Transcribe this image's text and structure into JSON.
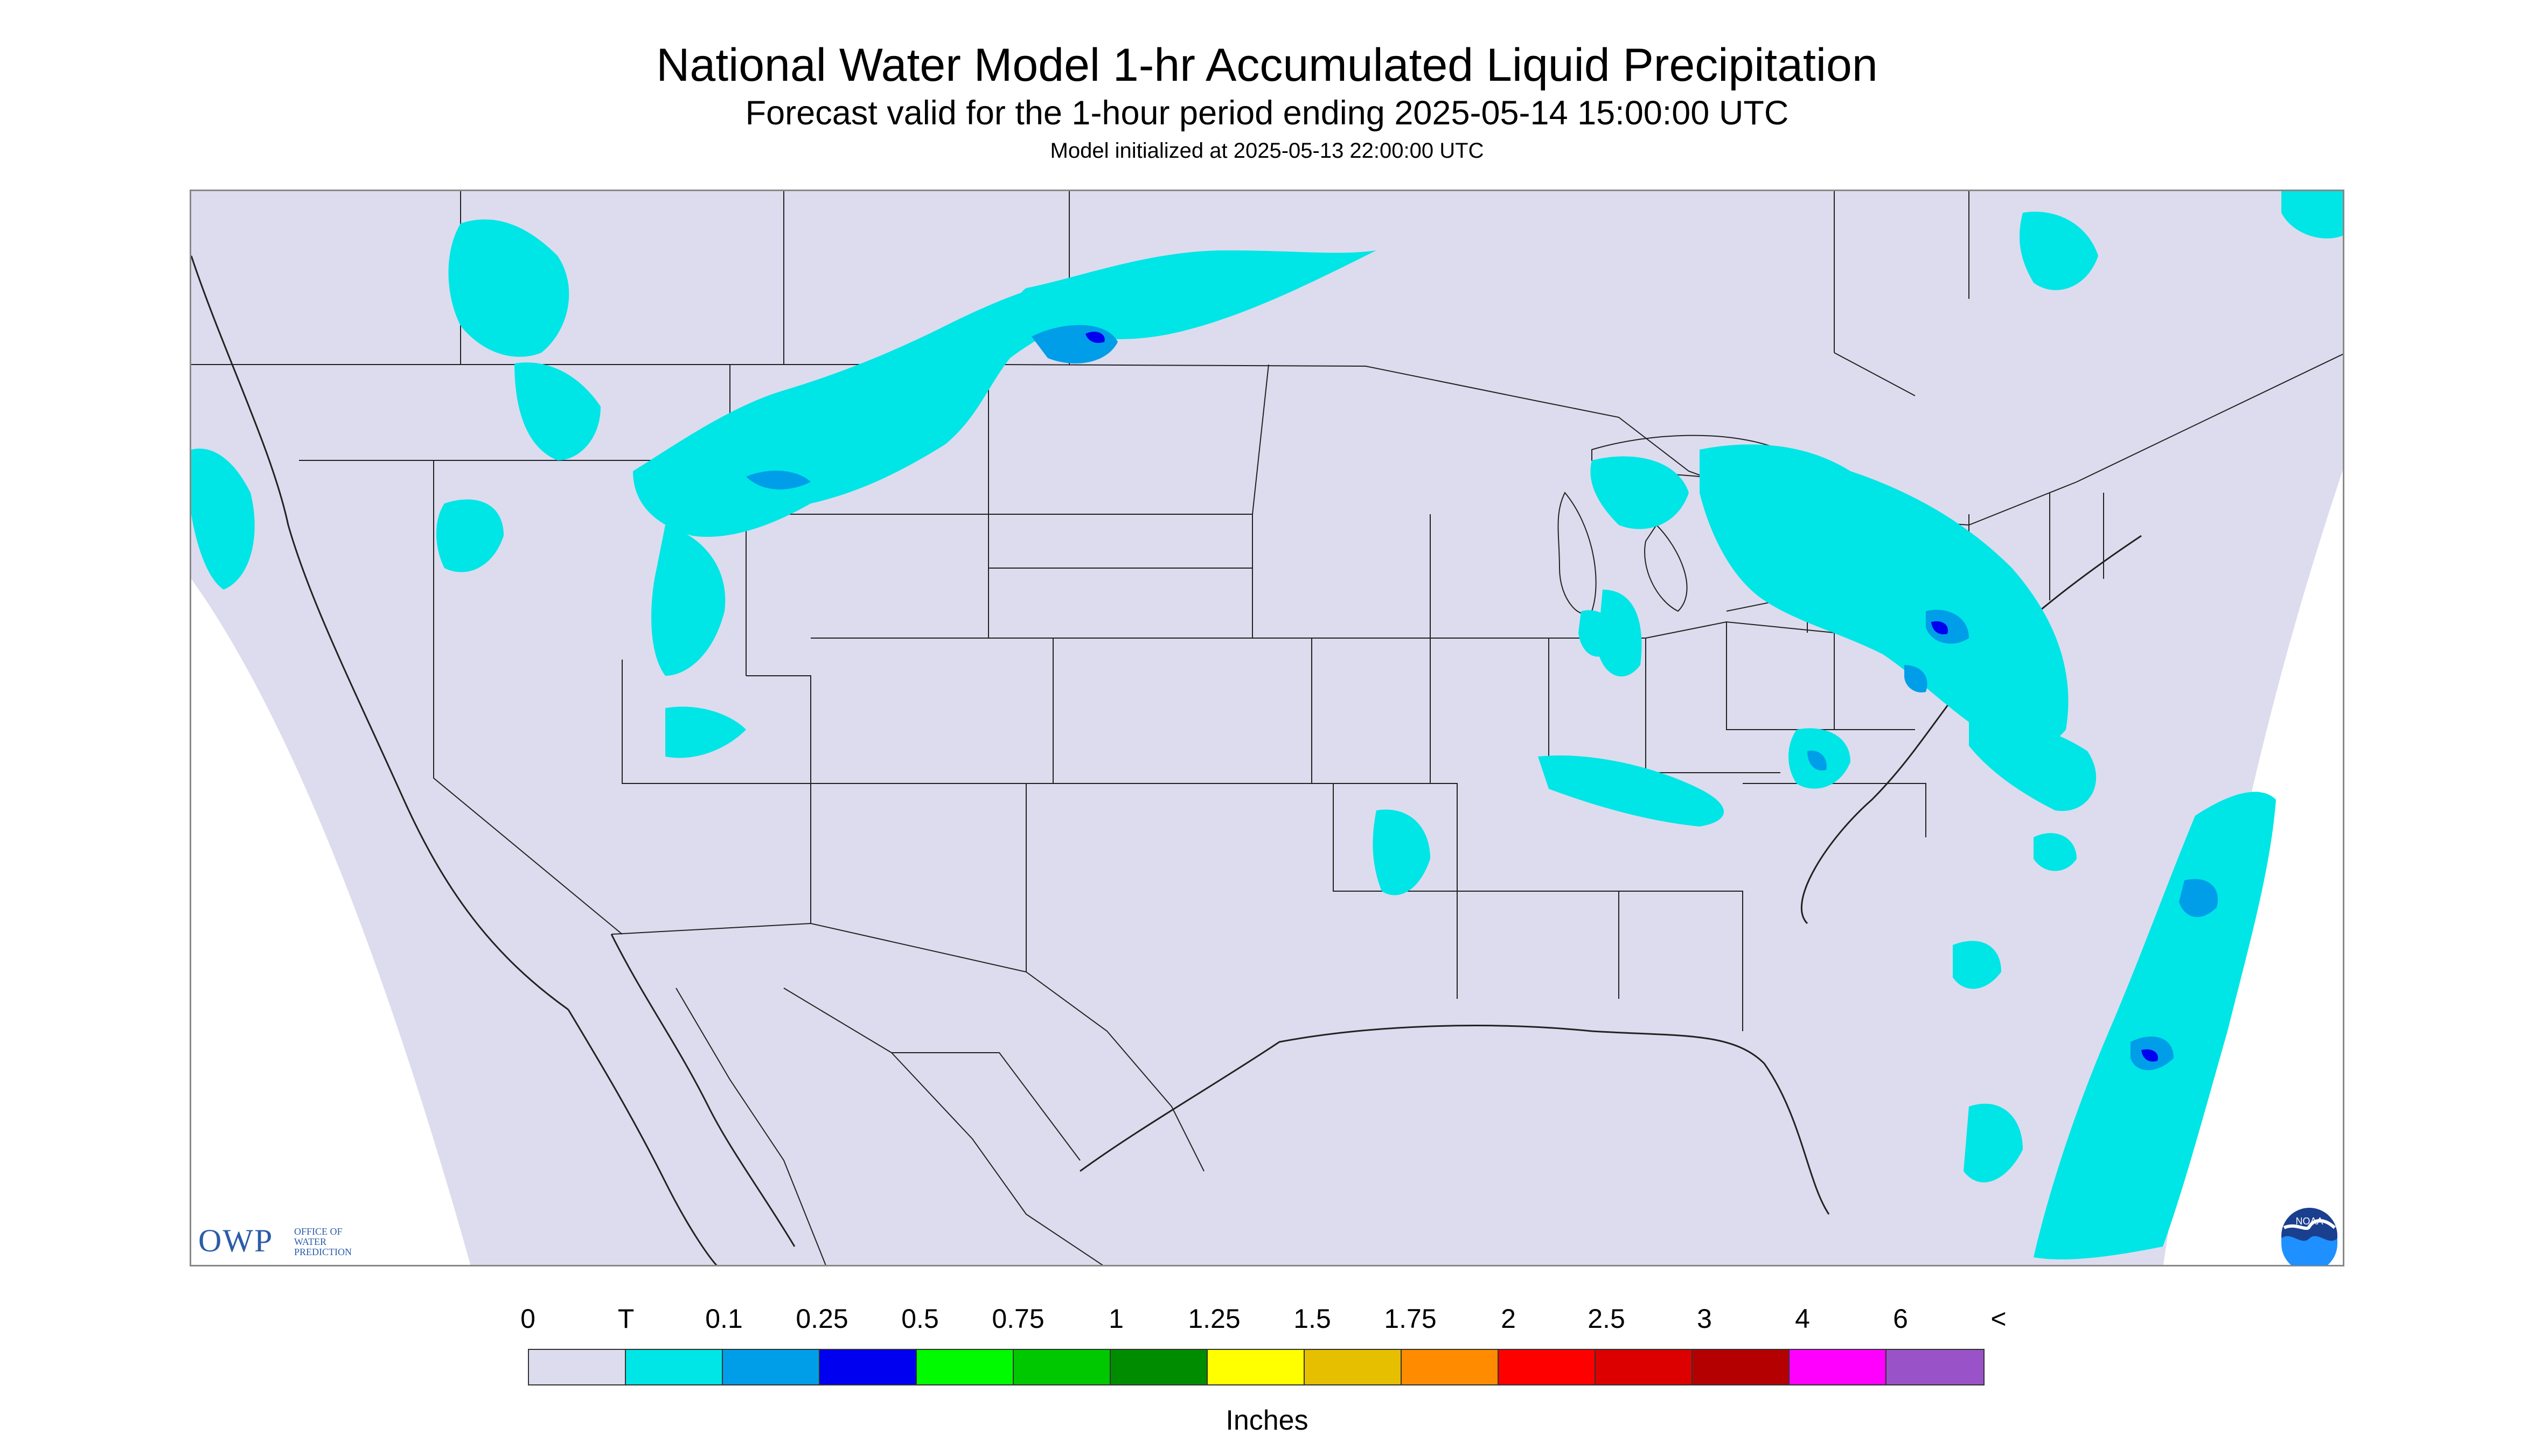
{
  "title": "National Water Model 1-hr Accumulated Liquid Precipitation",
  "subtitle": "Forecast valid for the 1-hour period ending 2025-05-14 15:00:00 UTC",
  "init_line": "Model initialized at 2025-05-13 22:00:00 UTC",
  "logo": {
    "owp_text": "OWP",
    "owp_subtext": "Office of Water Prediction",
    "noaa_text": "NOAA"
  },
  "legend": {
    "tick_labels": [
      "0",
      "T",
      "0.1",
      "0.25",
      "0.5",
      "0.75",
      "1",
      "1.25",
      "1.5",
      "1.75",
      "2",
      "2.5",
      "3",
      "4",
      "6",
      "<"
    ],
    "colors": [
      "#dcdcee",
      "#00e5e5",
      "#009ee8",
      "#0000f0",
      "#00fa00",
      "#00c800",
      "#008c00",
      "#ffff00",
      "#e6bf00",
      "#ff8c00",
      "#ff0000",
      "#dc0000",
      "#b40000",
      "#ff00ff",
      "#9a52c8"
    ],
    "units": "Inches"
  },
  "map": {
    "background_color": "#dcdcee",
    "precip_colors": {
      "trace": "#00e5e5",
      "light": "#009ee8",
      "moderate": "#0000f0",
      "heavy": "#00c800"
    }
  }
}
